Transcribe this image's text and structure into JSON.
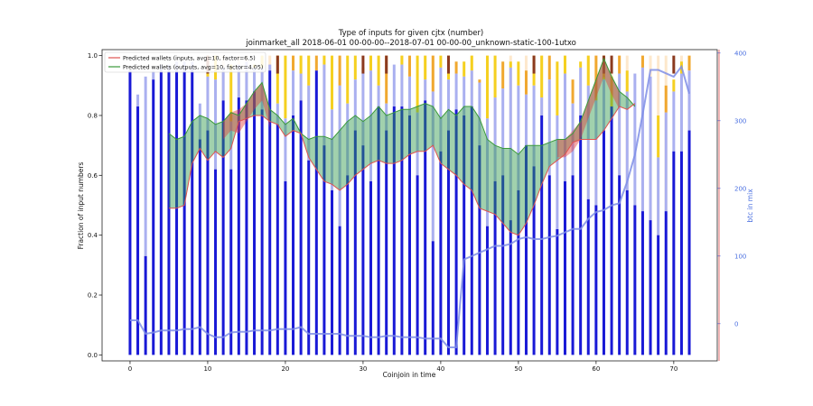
{
  "chart_data": {
    "type": "bar",
    "title": "Type of inputs for given cjtx (number)",
    "subtitle": "joinmarket_all 2018-06-01 00-00-00--2018-07-01 00-00-00_unknown-static-100-1utxo",
    "xlabel": "Coinjoin in time",
    "ylabel": "Fraction of input numbers",
    "y2label": "btc in mix",
    "xlim": [
      -3.6,
      75.6
    ],
    "ylim": [
      -0.02,
      1.02
    ],
    "y2lim": [
      -55,
      405
    ],
    "xticks": [
      0,
      10,
      20,
      30,
      40,
      50,
      60,
      70
    ],
    "yticks": [
      0.0,
      0.2,
      0.4,
      0.6,
      0.8,
      1.0
    ],
    "y2ticks": [
      0,
      100,
      200,
      300,
      400
    ],
    "legend_position": "top-left",
    "legend": [
      {
        "name": "Predicted wallets (inputs, avg=10, factor=6.5)",
        "color": "#e0534f"
      },
      {
        "name": "Predicted wallets (outputs, avg=10, factor=4.05)",
        "color": "#3a9a3a"
      }
    ],
    "colors": {
      "fresh": "#1919d6",
      "remix_light": "#aab0f0",
      "yellow": "#f5d020",
      "orange": "#f0a830",
      "peach": "#fde8cc",
      "pink": "#f0a0a0",
      "brown": "#8b3a1f",
      "btc_line": "#7f8ee6",
      "inputs_line": "#e0534f",
      "outputs_line": "#3a9a3a"
    },
    "n_coinjoins": 73,
    "fresh_fraction": [
      0.95,
      0.83,
      0.33,
      0.92,
      0.95,
      0.95,
      0.95,
      0.95,
      0.95,
      0.72,
      0.75,
      0.62,
      0.85,
      0.62,
      0.86,
      0.85,
      0.88,
      0.82,
      0.95,
      0.77,
      0.58,
      0.8,
      0.85,
      0.65,
      0.95,
      0.7,
      0.55,
      0.43,
      0.6,
      0.75,
      0.7,
      0.58,
      0.83,
      0.75,
      0.83,
      0.83,
      0.8,
      0.6,
      0.85,
      0.38,
      0.68,
      0.75,
      0.82,
      0.8,
      0.83,
      0.7,
      0.43,
      0.58,
      0.6,
      0.45,
      0.55,
      0.7,
      0.63,
      0.8,
      0.6,
      0.42,
      0.58,
      0.6,
      0.8,
      0.52,
      0.5,
      0.75,
      0.83,
      0.6,
      0.55,
      0.5,
      0.48,
      0.45,
      0.4,
      0.48,
      0.68,
      0.68,
      0.75
    ],
    "remix_light_top": [
      0.95,
      0.87,
      0.93,
      0.95,
      0.97,
      0.97,
      0.98,
      0.98,
      0.98,
      0.84,
      0.93,
      0.92,
      0.96,
      0.78,
      0.97,
      0.98,
      0.96,
      0.96,
      0.97,
      0.84,
      0.79,
      0.95,
      0.94,
      0.9,
      0.95,
      0.97,
      0.82,
      0.9,
      0.84,
      0.92,
      0.95,
      0.95,
      0.9,
      0.84,
      0.97,
      0.97,
      0.93,
      0.81,
      0.92,
      0.88,
      0.96,
      0.92,
      0.94,
      0.93,
      0.95,
      0.91,
      0.79,
      0.86,
      0.89,
      0.96,
      0.9,
      0.87,
      0.9,
      0.86,
      0.92,
      0.8,
      0.94,
      0.84,
      0.96,
      0.9,
      0.85,
      0.92,
      0.78,
      0.94,
      0.88,
      0.94,
      0.96,
      0.93,
      0.66,
      0.81,
      0.88,
      0.94,
      0.95
    ],
    "yellow_top": [
      0.95,
      0.87,
      0.93,
      0.95,
      0.97,
      0.97,
      0.98,
      0.98,
      0.98,
      0.84,
      1.0,
      1.0,
      0.96,
      0.97,
      0.97,
      0.98,
      0.97,
      1.0,
      0.97,
      1.0,
      1.0,
      1.0,
      1.0,
      1.0,
      1.0,
      1.0,
      1.0,
      1.0,
      1.0,
      1.0,
      0.96,
      1.0,
      1.0,
      1.0,
      0.97,
      1.0,
      1.0,
      1.0,
      1.0,
      1.0,
      1.0,
      1.0,
      0.98,
      0.98,
      1.0,
      0.92,
      1.0,
      1.0,
      0.98,
      0.98,
      0.98,
      0.95,
      1.0,
      1.0,
      1.0,
      0.98,
      1.0,
      0.92,
      0.98,
      1.0,
      1.0,
      1.0,
      0.93,
      1.0,
      0.95,
      0.88,
      1.0,
      0.82,
      0.8,
      0.9,
      0.92,
      0.98,
      1.0
    ],
    "top_extra": [
      0,
      0,
      0,
      0,
      0,
      0,
      0,
      0,
      0,
      0,
      0,
      0,
      0,
      0,
      0,
      0,
      0,
      0,
      0,
      0,
      0,
      0,
      0,
      0,
      0,
      0,
      0,
      0,
      0,
      0,
      0,
      0,
      0,
      0,
      0,
      0,
      0,
      0,
      0,
      0,
      0,
      0,
      0,
      0,
      0,
      0,
      0,
      0,
      0,
      0,
      0,
      0,
      0,
      0,
      0,
      0,
      0,
      0,
      0,
      0,
      0,
      0,
      0,
      0,
      0,
      0,
      0,
      0,
      0,
      0,
      0,
      0,
      0
    ],
    "peach_bars": [
      10,
      11,
      12,
      14,
      15,
      17,
      18,
      22,
      23,
      25,
      27,
      30,
      31,
      32,
      35,
      38,
      39,
      41,
      44,
      46,
      47,
      49,
      51,
      53,
      56,
      59,
      60,
      61,
      62,
      63,
      64,
      66,
      67,
      68,
      69,
      71
    ],
    "brown_bars": [
      10,
      19,
      30,
      33,
      41,
      52,
      61,
      62,
      70
    ],
    "btc_in_mix": [
      5,
      5,
      -15,
      -13,
      -10,
      -10,
      -10,
      -8,
      -8,
      -5,
      -15,
      -20,
      -20,
      -13,
      -12,
      -12,
      -10,
      -10,
      -10,
      -8,
      -8,
      -8,
      -5,
      -15,
      -15,
      -15,
      -15,
      -15,
      -18,
      -18,
      -18,
      -20,
      -20,
      -18,
      -18,
      -20,
      -20,
      -20,
      -22,
      -22,
      -22,
      -35,
      -35,
      95,
      100,
      105,
      110,
      115,
      115,
      118,
      125,
      128,
      125,
      125,
      128,
      130,
      135,
      140,
      140,
      155,
      165,
      168,
      175,
      178,
      210,
      250,
      310,
      375,
      375,
      370,
      365,
      380,
      340
    ]
  }
}
